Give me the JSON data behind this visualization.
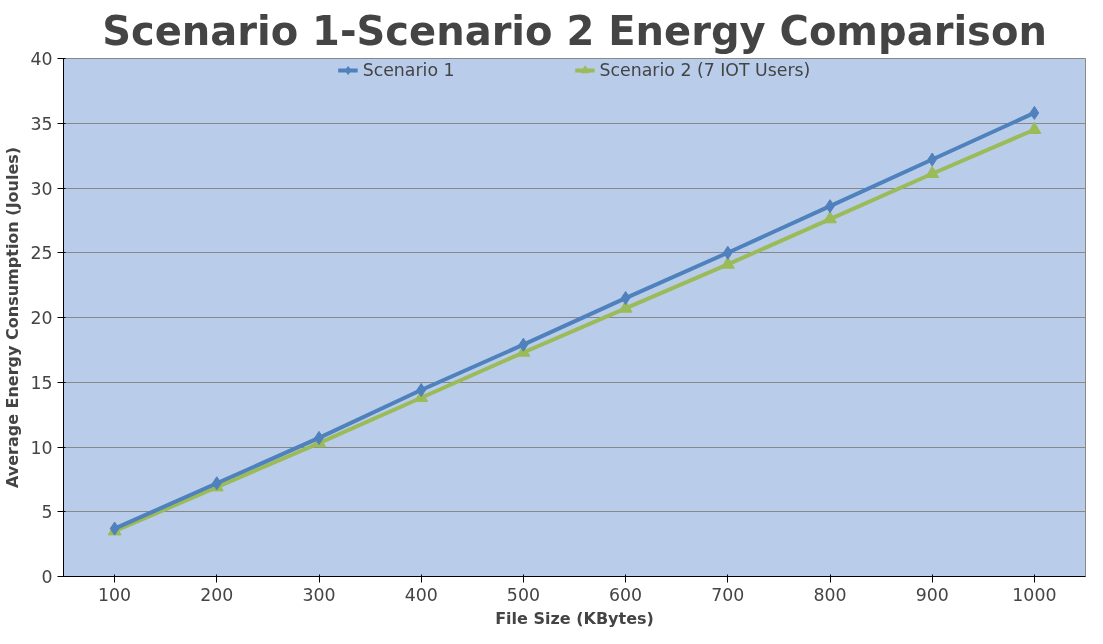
{
  "chart_data": {
    "type": "line",
    "title": "Scenario 1-Scenario 2 Energy Comparison",
    "xlabel": "File Size (KBytes)",
    "ylabel": "Average Energy Consumption (Joules)",
    "categories": [
      "100",
      "200",
      "300",
      "400",
      "500",
      "600",
      "700",
      "800",
      "900",
      "1000"
    ],
    "series": [
      {
        "name": "Scenario 1",
        "color": "#4f81bd",
        "marker": "diamond",
        "values": [
          3.7,
          7.2,
          10.7,
          14.4,
          17.9,
          21.5,
          25.0,
          28.6,
          32.2,
          35.8
        ]
      },
      {
        "name": "Scenario 2 (7 IOT Users)",
        "color": "#9bbb59",
        "marker": "triangle",
        "values": [
          3.5,
          6.9,
          10.3,
          13.8,
          17.3,
          20.7,
          24.1,
          27.6,
          31.1,
          34.5
        ]
      }
    ],
    "ylim": [
      0,
      40
    ],
    "yticks": [
      0,
      5,
      10,
      15,
      20,
      25,
      30,
      35,
      40
    ],
    "grid": "y",
    "legend": "top",
    "line_style": "solid"
  }
}
